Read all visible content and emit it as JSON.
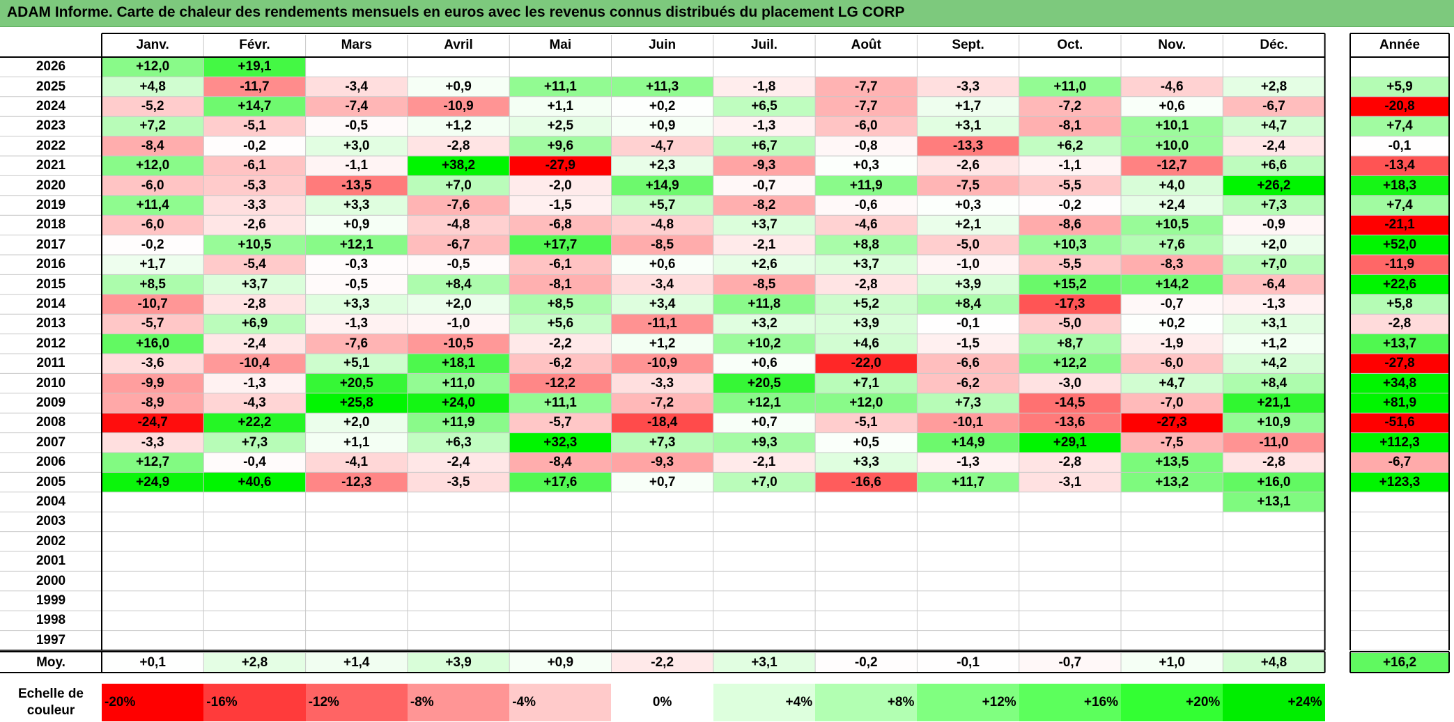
{
  "title": "ADAM Informe. Carte de chaleur des rendements mensuels en euros avec les revenus connus distribués du placement LG CORP",
  "chart_data": {
    "type": "heatmap",
    "title": "ADAM Informe. Carte de chaleur des rendements mensuels en euros avec les revenus connus distribués du placement LG CORP",
    "columns": [
      "Janv.",
      "Févr.",
      "Mars",
      "Avril",
      "Mai",
      "Juin",
      "Juil.",
      "Août",
      "Sept.",
      "Oct.",
      "Nov.",
      "Déc."
    ],
    "year_label": "Année",
    "rows": [
      {
        "year": "2026",
        "months": [
          "+12,0",
          "+19,1",
          "",
          "",
          "",
          "",
          "",
          "",
          "",
          "",
          "",
          ""
        ],
        "annual": ""
      },
      {
        "year": "2025",
        "months": [
          "+4,8",
          "-11,7",
          "-3,4",
          "+0,9",
          "+11,1",
          "+11,3",
          "-1,8",
          "-7,7",
          "-3,3",
          "+11,0",
          "-4,6",
          "+2,8"
        ],
        "annual": "+5,9"
      },
      {
        "year": "2024",
        "months": [
          "-5,2",
          "+14,7",
          "-7,4",
          "-10,9",
          "+1,1",
          "+0,2",
          "+6,5",
          "-7,7",
          "+1,7",
          "-7,2",
          "+0,6",
          "-6,7"
        ],
        "annual": "-20,8"
      },
      {
        "year": "2023",
        "months": [
          "+7,2",
          "-5,1",
          "-0,5",
          "+1,2",
          "+2,5",
          "+0,9",
          "-1,3",
          "-6,0",
          "+3,1",
          "-8,1",
          "+10,1",
          "+4,7"
        ],
        "annual": "+7,4"
      },
      {
        "year": "2022",
        "months": [
          "-8,4",
          "-0,2",
          "+3,0",
          "-2,8",
          "+9,6",
          "-4,7",
          "+6,7",
          "-0,8",
          "-13,3",
          "+6,2",
          "+10,0",
          "-2,4"
        ],
        "annual": "-0,1"
      },
      {
        "year": "2021",
        "months": [
          "+12,0",
          "-6,1",
          "-1,1",
          "+38,2",
          "-27,9",
          "+2,3",
          "-9,3",
          "+0,3",
          "-2,6",
          "-1,1",
          "-12,7",
          "+6,6"
        ],
        "annual": "-13,4"
      },
      {
        "year": "2020",
        "months": [
          "-6,0",
          "-5,3",
          "-13,5",
          "+7,0",
          "-2,0",
          "+14,9",
          "-0,7",
          "+11,9",
          "-7,5",
          "-5,5",
          "+4,0",
          "+26,2"
        ],
        "annual": "+18,3"
      },
      {
        "year": "2019",
        "months": [
          "+11,4",
          "-3,3",
          "+3,3",
          "-7,6",
          "-1,5",
          "+5,7",
          "-8,2",
          "-0,6",
          "+0,3",
          "-0,2",
          "+2,4",
          "+7,3"
        ],
        "annual": "+7,4"
      },
      {
        "year": "2018",
        "months": [
          "-6,0",
          "-2,6",
          "+0,9",
          "-4,8",
          "-6,8",
          "-4,8",
          "+3,7",
          "-4,6",
          "+2,1",
          "-8,6",
          "+10,5",
          "-0,9"
        ],
        "annual": "-21,1"
      },
      {
        "year": "2017",
        "months": [
          "-0,2",
          "+10,5",
          "+12,1",
          "-6,7",
          "+17,7",
          "-8,5",
          "-2,1",
          "+8,8",
          "-5,0",
          "+10,3",
          "+7,6",
          "+2,0"
        ],
        "annual": "+52,0"
      },
      {
        "year": "2016",
        "months": [
          "+1,7",
          "-5,4",
          "-0,3",
          "-0,5",
          "-6,1",
          "+0,6",
          "+2,6",
          "+3,7",
          "-1,0",
          "-5,5",
          "-8,3",
          "+7,0"
        ],
        "annual": "-11,9"
      },
      {
        "year": "2015",
        "months": [
          "+8,5",
          "+3,7",
          "-0,5",
          "+8,4",
          "-8,1",
          "-3,4",
          "-8,5",
          "-2,8",
          "+3,9",
          "+15,2",
          "+14,2",
          "-6,4"
        ],
        "annual": "+22,6"
      },
      {
        "year": "2014",
        "months": [
          "-10,7",
          "-2,8",
          "+3,3",
          "+2,0",
          "+8,5",
          "+3,4",
          "+11,8",
          "+5,2",
          "+8,4",
          "-17,3",
          "-0,7",
          "-1,3"
        ],
        "annual": "+5,8"
      },
      {
        "year": "2013",
        "months": [
          "-5,7",
          "+6,9",
          "-1,3",
          "-1,0",
          "+5,6",
          "-11,1",
          "+3,2",
          "+3,9",
          "-0,1",
          "-5,0",
          "+0,2",
          "+3,1"
        ],
        "annual": "-2,8"
      },
      {
        "year": "2012",
        "months": [
          "+16,0",
          "-2,4",
          "-7,6",
          "-10,5",
          "-2,2",
          "+1,2",
          "+10,2",
          "+4,6",
          "-1,5",
          "+8,7",
          "-1,9",
          "+1,2"
        ],
        "annual": "+13,7"
      },
      {
        "year": "2011",
        "months": [
          "-3,6",
          "-10,4",
          "+5,1",
          "+18,1",
          "-6,2",
          "-10,9",
          "+0,6",
          "-22,0",
          "-6,6",
          "+12,2",
          "-6,0",
          "+4,2"
        ],
        "annual": "-27,8"
      },
      {
        "year": "2010",
        "months": [
          "-9,9",
          "-1,3",
          "+20,5",
          "+11,0",
          "-12,2",
          "-3,3",
          "+20,5",
          "+7,1",
          "-6,2",
          "-3,0",
          "+4,7",
          "+8,4"
        ],
        "annual": "+34,8"
      },
      {
        "year": "2009",
        "months": [
          "-8,9",
          "-4,3",
          "+25,8",
          "+24,0",
          "+11,1",
          "-7,2",
          "+12,1",
          "+12,0",
          "+7,3",
          "-14,5",
          "-7,0",
          "+21,1"
        ],
        "annual": "+81,9"
      },
      {
        "year": "2008",
        "months": [
          "-24,7",
          "+22,2",
          "+2,0",
          "+11,9",
          "-5,7",
          "-18,4",
          "+0,7",
          "-5,1",
          "-10,1",
          "-13,6",
          "-27,3",
          "+10,9"
        ],
        "annual": "-51,6"
      },
      {
        "year": "2007",
        "months": [
          "-3,3",
          "+7,3",
          "+1,1",
          "+6,3",
          "+32,3",
          "+7,3",
          "+9,3",
          "+0,5",
          "+14,9",
          "+29,1",
          "-7,5",
          "-11,0"
        ],
        "annual": "+112,3"
      },
      {
        "year": "2006",
        "months": [
          "+12,7",
          "-0,4",
          "-4,1",
          "-2,4",
          "-8,4",
          "-9,3",
          "-2,1",
          "+3,3",
          "-1,3",
          "-2,8",
          "+13,5",
          "-2,8"
        ],
        "annual": "-6,7"
      },
      {
        "year": "2005",
        "months": [
          "+24,9",
          "+40,6",
          "-12,3",
          "-3,5",
          "+17,6",
          "+0,7",
          "+7,0",
          "-16,6",
          "+11,7",
          "-3,1",
          "+13,2",
          "+16,0"
        ],
        "annual": "+123,3"
      },
      {
        "year": "2004",
        "months": [
          "",
          "",
          "",
          "",
          "",
          "",
          "",
          "",
          "",
          "",
          "",
          "+13,1"
        ],
        "annual": ""
      },
      {
        "year": "2003",
        "months": [
          "",
          "",
          "",
          "",
          "",
          "",
          "",
          "",
          "",
          "",
          "",
          ""
        ],
        "annual": ""
      },
      {
        "year": "2002",
        "months": [
          "",
          "",
          "",
          "",
          "",
          "",
          "",
          "",
          "",
          "",
          "",
          ""
        ],
        "annual": ""
      },
      {
        "year": "2001",
        "months": [
          "",
          "",
          "",
          "",
          "",
          "",
          "",
          "",
          "",
          "",
          "",
          ""
        ],
        "annual": ""
      },
      {
        "year": "2000",
        "months": [
          "",
          "",
          "",
          "",
          "",
          "",
          "",
          "",
          "",
          "",
          "",
          ""
        ],
        "annual": ""
      },
      {
        "year": "1999",
        "months": [
          "",
          "",
          "",
          "",
          "",
          "",
          "",
          "",
          "",
          "",
          "",
          ""
        ],
        "annual": ""
      },
      {
        "year": "1998",
        "months": [
          "",
          "",
          "",
          "",
          "",
          "",
          "",
          "",
          "",
          "",
          "",
          ""
        ],
        "annual": ""
      },
      {
        "year": "1997",
        "months": [
          "",
          "",
          "",
          "",
          "",
          "",
          "",
          "",
          "",
          "",
          "",
          ""
        ],
        "annual": ""
      }
    ],
    "average": {
      "label": "Moy.",
      "months": [
        "+0,1",
        "+2,8",
        "+1,4",
        "+3,9",
        "+0,9",
        "-2,2",
        "+3,1",
        "-0,2",
        "-0,1",
        "-0,7",
        "+1,0",
        "+4,8"
      ],
      "annual": "+16,2"
    },
    "color_scale": {
      "label_line1": "Echelle de",
      "label_line2": "couleur",
      "stops": [
        {
          "label": "-20%",
          "color": "#ff0000"
        },
        {
          "label": "-16%",
          "color": "#ff3b3b"
        },
        {
          "label": "-12%",
          "color": "#ff6464"
        },
        {
          "label": "-8%",
          "color": "#ff9595"
        },
        {
          "label": "-4%",
          "color": "#ffcaca"
        },
        {
          "label": "0%",
          "color": "#ffffff"
        },
        {
          "label": "+4%",
          "color": "#ddffdd"
        },
        {
          "label": "+8%",
          "color": "#b2ffb2"
        },
        {
          "label": "+12%",
          "color": "#80ff80"
        },
        {
          "label": "+16%",
          "color": "#5cff5c"
        },
        {
          "label": "+20%",
          "color": "#33ff33"
        },
        {
          "label": "+24%",
          "color": "#00ee00"
        }
      ]
    }
  }
}
